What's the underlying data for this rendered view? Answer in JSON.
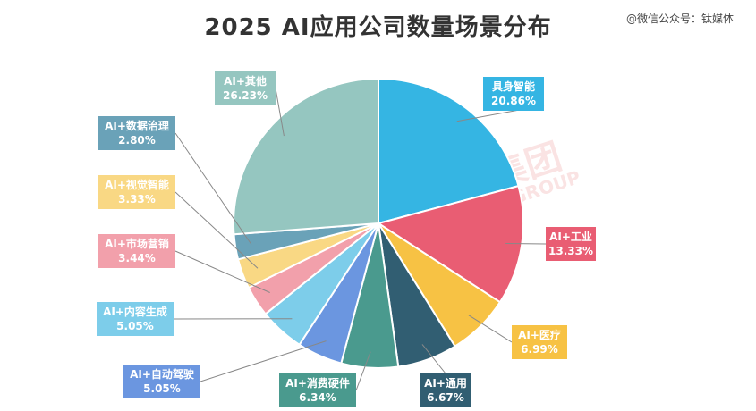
{
  "source": "@微信公众号：钛媒体",
  "watermark": {
    "cn": "钛媒体集团",
    "en": "TMTPOST GROUP"
  },
  "chart_data": {
    "type": "pie",
    "title": "2025 AI应用公司数量场景分布",
    "unit": "%",
    "slices": [
      {
        "label": "具身智能",
        "value": 20.86,
        "display": "20.86%",
        "color": "#35b5e3",
        "text_color": "#ffffff"
      },
      {
        "label": "AI+工业",
        "value": 13.33,
        "display": "13.33%",
        "color": "#e95d73",
        "text_color": "#ffffff"
      },
      {
        "label": "AI+医疗",
        "value": 6.99,
        "display": "6.99%",
        "color": "#f7c244",
        "text_color": "#ffffff"
      },
      {
        "label": "AI+通用",
        "value": 6.67,
        "display": "6.67%",
        "color": "#315e72",
        "text_color": "#ffffff"
      },
      {
        "label": "AI+消费硬件",
        "value": 6.34,
        "display": "6.34%",
        "color": "#4a9a8e",
        "text_color": "#ffffff"
      },
      {
        "label": "AI+自动驾驶",
        "value": 5.05,
        "display": "5.05%",
        "color": "#6b96e0",
        "text_color": "#ffffff"
      },
      {
        "label": "AI+内容生成",
        "value": 5.05,
        "display": "5.05%",
        "color": "#7dcdea",
        "text_color": "#ffffff"
      },
      {
        "label": "AI+市场营销",
        "value": 3.44,
        "display": "3.44%",
        "color": "#f2a0ab",
        "text_color": "#ffffff"
      },
      {
        "label": "AI+视觉智能",
        "value": 3.33,
        "display": "3.33%",
        "color": "#f9d884",
        "text_color": "#ffffff"
      },
      {
        "label": "AI+数据治理",
        "value": 2.8,
        "display": "2.80%",
        "color": "#6aa2b8",
        "text_color": "#ffffff"
      },
      {
        "label": "AI+其他",
        "value": 26.23,
        "display": "26.23%",
        "color": "#95c6c0",
        "text_color": "#ffffff"
      }
    ]
  }
}
